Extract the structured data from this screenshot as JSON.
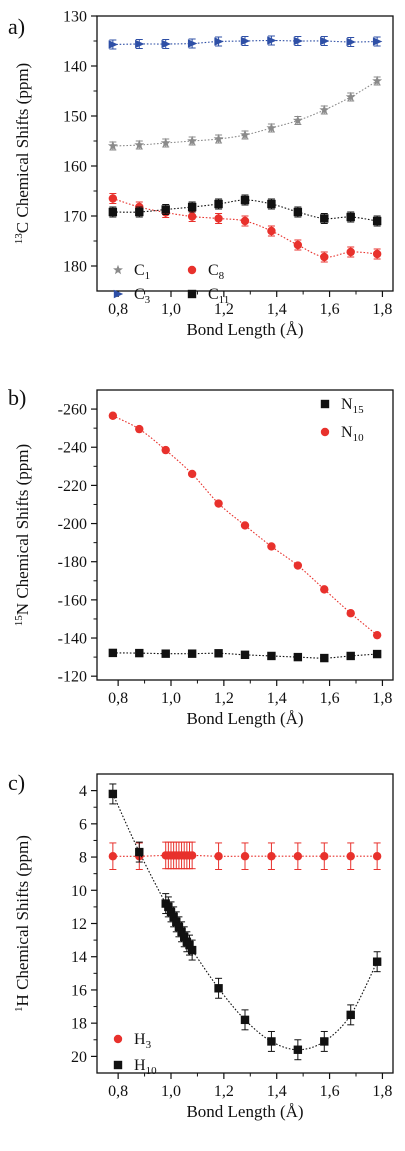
{
  "chart_data": [
    {
      "type": "scatter",
      "panel_label": "a)",
      "ylabel_sup": "13",
      "ylabel": "C Chemical Shifts (ppm)",
      "xlabel": "Bond Length (Å)",
      "xlim": [
        0.72,
        1.84
      ],
      "ylim": [
        185,
        130
      ],
      "y_reversed": true,
      "x_ticks": [
        "0,8",
        "1,0",
        "1,2",
        "1,4",
        "1,6",
        "1,8"
      ],
      "x_tick_values": [
        0.8,
        1.0,
        1.2,
        1.4,
        1.6,
        1.8
      ],
      "y_ticks": [
        "130",
        "140",
        "150",
        "160",
        "170",
        "180"
      ],
      "y_tick_values": [
        130,
        140,
        150,
        160,
        170,
        180
      ],
      "legend": "bottom-left",
      "series": [
        {
          "name": "C",
          "sub": "1",
          "marker": "star",
          "color": "#8a8a8a",
          "x": [
            0.78,
            0.88,
            0.98,
            1.08,
            1.18,
            1.28,
            1.38,
            1.48,
            1.58,
            1.68,
            1.78
          ],
          "y": [
            156.0,
            155.8,
            155.4,
            155.0,
            154.6,
            153.8,
            152.4,
            150.9,
            148.8,
            146.2,
            143.0
          ],
          "err": 0.8
        },
        {
          "name": "C",
          "sub": "3",
          "marker": "triangle-right",
          "color": "#2e4fa6",
          "x": [
            0.78,
            0.88,
            0.98,
            1.08,
            1.18,
            1.28,
            1.38,
            1.48,
            1.58,
            1.68,
            1.78
          ],
          "y": [
            135.7,
            135.6,
            135.6,
            135.5,
            135.1,
            135.0,
            134.9,
            135.0,
            135.0,
            135.2,
            135.1
          ],
          "err": 0.9
        },
        {
          "name": "C",
          "sub": "8",
          "marker": "circle",
          "color": "#e8312c",
          "x": [
            0.78,
            0.88,
            0.98,
            1.08,
            1.18,
            1.28,
            1.38,
            1.48,
            1.58,
            1.68,
            1.78
          ],
          "y": [
            166.5,
            168.2,
            169.3,
            170.1,
            170.5,
            171.0,
            173.0,
            175.8,
            178.2,
            177.2,
            177.6
          ],
          "err": 1.0
        },
        {
          "name": "C",
          "sub": "11",
          "marker": "square",
          "color": "#111111",
          "x": [
            0.78,
            0.88,
            0.98,
            1.08,
            1.18,
            1.28,
            1.38,
            1.48,
            1.58,
            1.68,
            1.78
          ],
          "y": [
            169.2,
            169.2,
            168.7,
            168.2,
            167.6,
            166.8,
            167.6,
            169.2,
            170.5,
            170.2,
            171.0
          ],
          "err": 1.0
        }
      ]
    },
    {
      "type": "scatter",
      "panel_label": "b)",
      "ylabel_sup": "15",
      "ylabel": "N Chemical Shifts (ppm)",
      "xlabel": "Bond Length (Å)",
      "xlim": [
        0.72,
        1.84
      ],
      "ylim": [
        -270,
        -118
      ],
      "y_reversed": false,
      "x_ticks": [
        "0,8",
        "1,0",
        "1,2",
        "1,4",
        "1,6",
        "1,8"
      ],
      "x_tick_values": [
        0.8,
        1.0,
        1.2,
        1.4,
        1.6,
        1.8
      ],
      "y_ticks": [
        "-260",
        "-240",
        "-220",
        "-200",
        "-180",
        "-160",
        "-140",
        "-120"
      ],
      "y_tick_values": [
        -260,
        -240,
        -220,
        -200,
        -180,
        -160,
        -140,
        -120
      ],
      "legend": "top-right",
      "series": [
        {
          "name": "N",
          "sub": "15",
          "marker": "square",
          "color": "#111111",
          "x": [
            0.78,
            0.88,
            0.98,
            1.08,
            1.18,
            1.28,
            1.38,
            1.48,
            1.58,
            1.68,
            1.78
          ],
          "y": [
            -132.2,
            -132.1,
            -131.8,
            -131.8,
            -132.0,
            -131.2,
            -130.6,
            -130.0,
            -129.5,
            -130.6,
            -131.6
          ],
          "err": 1.2
        },
        {
          "name": "N",
          "sub": "10",
          "marker": "circle",
          "color": "#e8312c",
          "x": [
            0.78,
            0.88,
            0.98,
            1.08,
            1.18,
            1.28,
            1.38,
            1.48,
            1.58,
            1.68,
            1.78
          ],
          "y": [
            -256.5,
            -249.5,
            -238.5,
            -226.0,
            -210.5,
            -199.0,
            -188.0,
            -178.0,
            -165.5,
            -153.0,
            -141.5
          ],
          "err": 0
        }
      ]
    },
    {
      "type": "scatter",
      "panel_label": "c)",
      "ylabel_sup": "1",
      "ylabel": "H Chemical Shifts (ppm)",
      "xlabel": "Bond Length (Å)",
      "xlim": [
        0.72,
        1.84
      ],
      "ylim": [
        3,
        21
      ],
      "y_reversed": true,
      "x_ticks": [
        "0,8",
        "1,0",
        "1,2",
        "1,4",
        "1,6",
        "1,8"
      ],
      "x_tick_values": [
        0.8,
        1.0,
        1.2,
        1.4,
        1.6,
        1.8
      ],
      "y_ticks": [
        "4",
        "6",
        "8",
        "10",
        "12",
        "14",
        "16",
        "18",
        "20"
      ],
      "y_tick_values": [
        4,
        6,
        8,
        10,
        12,
        14,
        16,
        18,
        20
      ],
      "legend": "bottom-left",
      "series": [
        {
          "name": "H",
          "sub": "3",
          "marker": "circle",
          "color": "#e8312c",
          "x": [
            0.78,
            0.88,
            0.98,
            0.99,
            1.0,
            1.01,
            1.02,
            1.03,
            1.04,
            1.05,
            1.06,
            1.07,
            1.08,
            1.18,
            1.28,
            1.38,
            1.48,
            1.58,
            1.68,
            1.78
          ],
          "y": [
            7.95,
            7.95,
            7.9,
            7.9,
            7.9,
            7.9,
            7.9,
            7.9,
            7.9,
            7.9,
            7.9,
            7.9,
            7.9,
            7.95,
            7.95,
            7.95,
            7.95,
            7.95,
            7.95,
            7.95
          ],
          "err": 0.8
        },
        {
          "name": "H",
          "sub": "10",
          "marker": "square",
          "color": "#111111",
          "x": [
            0.78,
            0.88,
            0.98,
            0.99,
            1.0,
            1.01,
            1.02,
            1.03,
            1.04,
            1.05,
            1.06,
            1.07,
            1.08,
            1.18,
            1.28,
            1.38,
            1.48,
            1.58,
            1.68,
            1.78
          ],
          "y": [
            4.2,
            7.7,
            10.8,
            11.0,
            11.3,
            11.6,
            11.9,
            12.2,
            12.5,
            12.8,
            13.1,
            13.3,
            13.6,
            15.9,
            17.8,
            19.1,
            19.6,
            19.1,
            17.5,
            14.3
          ],
          "err": 0.6
        }
      ]
    }
  ]
}
